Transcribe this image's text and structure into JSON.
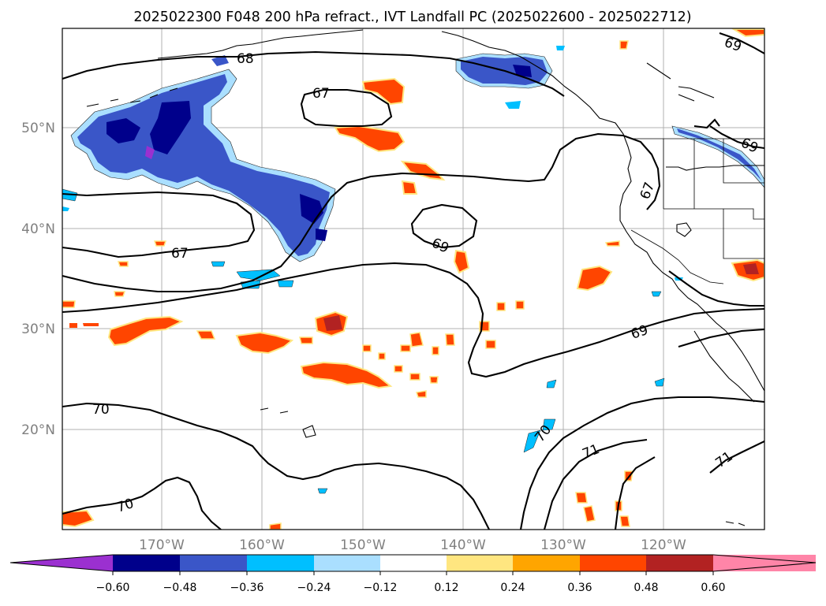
{
  "title": "2025022300 F048 200 hPa refract., IVT Landfall PC (2025022600 - 2025022712)",
  "lon_ticks": [
    "170°W",
    "160°W",
    "150°W",
    "140°W",
    "130°W",
    "120°W"
  ],
  "lat_ticks": [
    "50°N",
    "40°N",
    "30°N",
    "20°N"
  ],
  "contour_labels": [
    "68",
    "67",
    "67",
    "69",
    "69",
    "69",
    "67",
    "69",
    "70",
    "70",
    "70",
    "71",
    "71"
  ],
  "colorbar": {
    "ticks": [
      "−0.60",
      "−0.48",
      "−0.36",
      "−0.24",
      "−0.12",
      "0.12",
      "0.24",
      "0.36",
      "0.48",
      "0.60"
    ],
    "colors": [
      "#9b30d0",
      "#00008b",
      "#3a56c8",
      "#00bfff",
      "#aadfff",
      "#ffffff",
      "#ffe680",
      "#ffa500",
      "#ff4500",
      "#b22222",
      "#ff85a8"
    ]
  },
  "colors": {
    "blue_dark": "#00008b",
    "blue_mid": "#3a56c8",
    "blue_light": "#00bfff",
    "blue_pale": "#aadfff",
    "purple": "#9b30d0",
    "orange": "#ff4500",
    "orange_light": "#ffa500",
    "yellow": "#ffe680",
    "red_dark": "#b22222",
    "pink": "#ff85a8"
  }
}
